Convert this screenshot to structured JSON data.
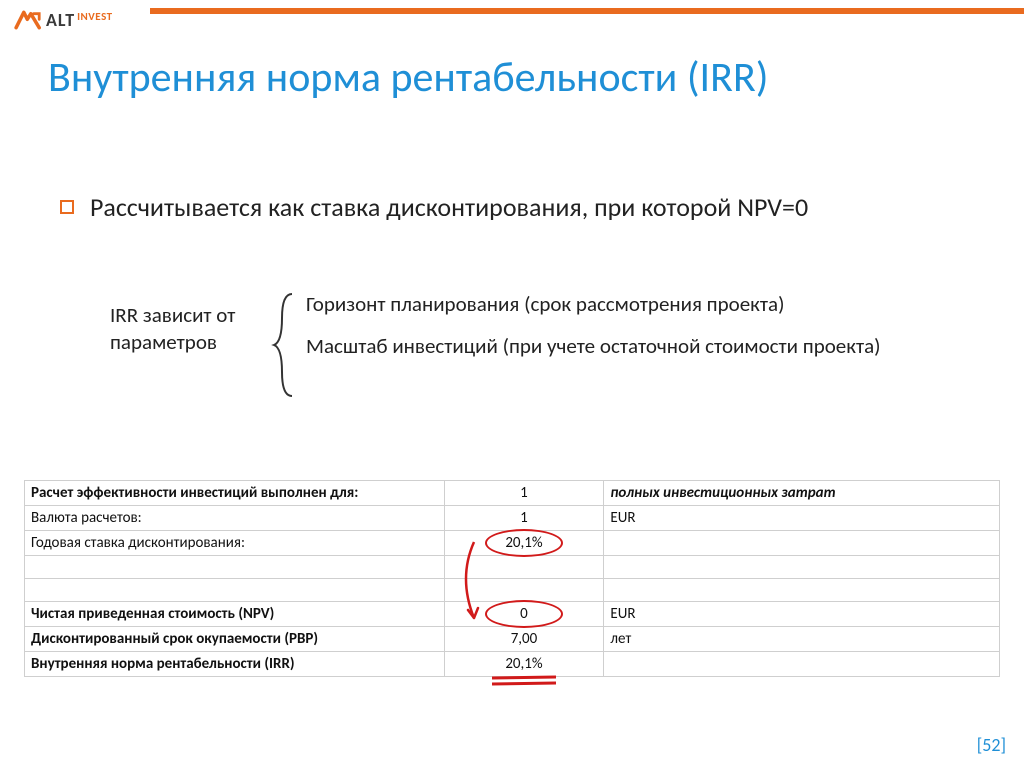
{
  "brand": {
    "alt": "ALT",
    "invest": "INVEST"
  },
  "title": "Внутренняя норма рентабельности (IRR)",
  "bullet": "Рассчитывается как ставка дисконтирования, при которой NPV=0",
  "dep": {
    "left": "IRR зависит от параметров",
    "items": [
      "Горизонт планирования (срок рассмотрения проекта)",
      "Масштаб инвестиций (при учете остаточной стоимости проекта)"
    ]
  },
  "table": {
    "rows": [
      {
        "label": "Расчет эффективности инвестиций выполнен для:",
        "value": "1",
        "unit": "полных инвестиционных затрат",
        "bold": true,
        "unitItalic": true
      },
      {
        "label": "Валюта расчетов:",
        "value": "1",
        "unit": "EUR"
      },
      {
        "label": "Годовая ставка дисконтирования:",
        "value": "20,1%",
        "unit": "",
        "circle": true
      },
      {
        "label": "",
        "value": "",
        "unit": ""
      },
      {
        "label": "",
        "value": "",
        "unit": ""
      },
      {
        "label": "Чистая приведенная стоимость (NPV)",
        "value": "0",
        "unit": "EUR",
        "bold": true,
        "circle": true
      },
      {
        "label": "Дисконтированный срок окупаемости (PBP)",
        "value": "7,00",
        "unit": "лет",
        "bold": true
      },
      {
        "label": "Внутренняя норма рентабельности (IRR)",
        "value": "20,1%",
        "unit": "",
        "bold": true,
        "underline": true
      }
    ]
  },
  "colors": {
    "accent": "#e96b1f",
    "titleColor": "#1f8fd6",
    "annotationRed": "#d11a1a",
    "gridColor": "#cfcfcf"
  },
  "pageNumber": "[52]"
}
